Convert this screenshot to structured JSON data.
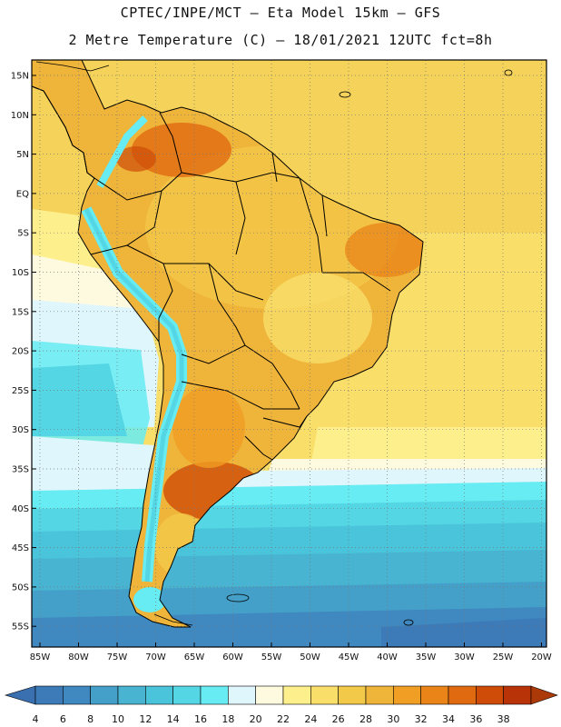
{
  "title_line1": "CPTEC/INPE/MCT –  Eta Model 15km – GFS",
  "title_line2": "2 Metre Temperature (C) – 18/01/2021 12UTC fct=8h",
  "lat_labels": [
    "15N",
    "10N",
    "5N",
    "EQ",
    "5S",
    "10S",
    "15S",
    "20S",
    "25S",
    "30S",
    "35S",
    "40S",
    "45S",
    "50S",
    "55S"
  ],
  "lon_labels": [
    "85W",
    "80W",
    "75W",
    "70W",
    "65W",
    "60W",
    "55W",
    "50W",
    "45W",
    "40W",
    "35W",
    "30W",
    "25W",
    "20W"
  ],
  "colorbar": {
    "values": [
      "4",
      "6",
      "8",
      "10",
      "12",
      "14",
      "16",
      "18",
      "20",
      "22",
      "24",
      "26",
      "28",
      "30",
      "32",
      "34",
      "36",
      "38"
    ],
    "colors": [
      "#3c7ab8",
      "#3f88c0",
      "#44a0c8",
      "#48b4d2",
      "#4ac4da",
      "#55d6e4",
      "#66ecf2",
      "#dff6fc",
      "#fefae0",
      "#fdf08c",
      "#f9de6a",
      "#f3c94a",
      "#efb43a",
      "#f09e24",
      "#ea8418",
      "#e06a10",
      "#ce4c08",
      "#b83408"
    ],
    "under_color": "#3a6fb0",
    "over_color": "#ab3a08"
  }
}
